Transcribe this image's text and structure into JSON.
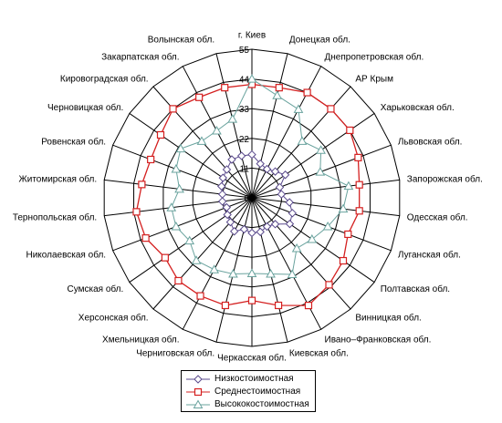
{
  "chart_data": {
    "type": "radar",
    "categories": [
      "г. Киев",
      "Донецкая обл.",
      "Днепропетровская обл.",
      "АР Крым",
      "Харьковская обл.",
      "Львовская обл.",
      "Запорожская обл.",
      "Одесская обл.",
      "Луганская обл.",
      "Полтавская обл.",
      "Винницкая обл.",
      "Ивано–Франковская обл.",
      "Киевская обл.",
      "Черкасская обл.",
      "Черниговская обл.",
      "Хмельницкая обл.",
      "Херсонская обл.",
      "Сумская обл.",
      "Николаевская обл.",
      "Тернопольская обл.",
      "Житомирская обл.",
      "Ровенская обл.",
      "Черновицкая обл.",
      "Кировоградская обл.",
      "Закарпатская обл.",
      "Волынская обл."
    ],
    "r_ticks": [
      "0",
      "11",
      "22",
      "33",
      "44",
      "55"
    ],
    "r_lim": [
      0,
      55
    ],
    "series": [
      {
        "name": "Низкостоимостная",
        "color": "#5a4a8c",
        "marker": "diamond",
        "values": [
          16,
          13,
          12,
          13,
          15,
          11,
          11,
          14,
          16,
          17,
          13,
          12,
          13,
          13,
          12,
          14,
          12,
          11,
          10,
          11,
          11,
          12,
          13,
          14,
          16,
          16
        ]
      },
      {
        "name": "Среднестоимостная",
        "color": "#d42020",
        "marker": "square",
        "values": [
          42,
          42,
          44,
          44,
          44,
          42,
          40,
          40,
          38,
          41,
          43,
          45,
          41,
          38,
          41,
          41,
          41,
          39,
          42,
          43,
          41,
          40,
          41,
          44,
          42,
          42
        ]
      },
      {
        "name": "Высококостоимостная",
        "color": "#6aa39e",
        "marker": "triangle",
        "values": [
          44,
          39,
          37,
          28,
          31,
          27,
          36,
          34,
          30,
          27,
          25,
          32,
          29,
          28,
          29,
          30,
          31,
          28,
          30,
          30,
          27,
          30,
          32,
          28,
          28,
          30
        ]
      }
    ],
    "legend_position": "bottom"
  }
}
